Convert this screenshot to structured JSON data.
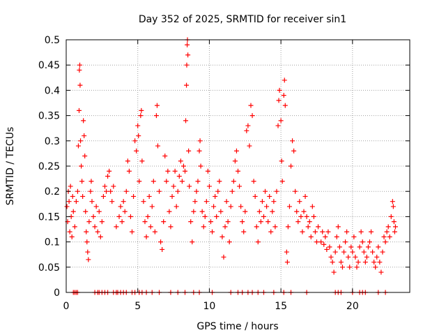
{
  "chart_data": {
    "type": "scatter",
    "title": "Day 352 of 2025, SRMTID for receiver sin1",
    "xlabel": "GPS time / hours",
    "ylabel": "SRMTID / TECUs",
    "xlim": [
      0,
      24
    ],
    "ylim": [
      0,
      0.5
    ],
    "xticks": [
      0,
      5,
      10,
      15,
      20
    ],
    "xtick_labels": [
      "0",
      "5",
      "10",
      "15",
      "20"
    ],
    "yticks": [
      0,
      0.05,
      0.1,
      0.15,
      0.2,
      0.25,
      0.3,
      0.35,
      0.4,
      0.45,
      0.5
    ],
    "ytick_labels": [
      "0",
      "0.05",
      "0.1",
      "0.15",
      "0.2",
      "0.25",
      "0.3",
      "0.35",
      "0.4",
      "0.45",
      "0.5"
    ],
    "grid": true,
    "marker": "+",
    "color": "#ff0000",
    "series": [
      {
        "name": "SRMTID",
        "points": [
          [
            0.05,
            0.17
          ],
          [
            0.1,
            0.14
          ],
          [
            0.15,
            0.2
          ],
          [
            0.2,
            0.18
          ],
          [
            0.25,
            0.12
          ],
          [
            0.3,
            0.21
          ],
          [
            0.35,
            0.15
          ],
          [
            0.4,
            0.11
          ],
          [
            0.45,
            0.19
          ],
          [
            0.5,
            0.16
          ],
          [
            0.6,
            0.13
          ],
          [
            0.7,
            0.18
          ],
          [
            0.8,
            0.2
          ],
          [
            0.85,
            0.29
          ],
          [
            0.9,
            0.36
          ],
          [
            0.92,
            0.44
          ],
          [
            0.95,
            0.45
          ],
          [
            0.97,
            0.41
          ],
          [
            1.0,
            0.3
          ],
          [
            1.05,
            0.25
          ],
          [
            1.1,
            0.22
          ],
          [
            1.15,
            0.19
          ],
          [
            1.2,
            0.34
          ],
          [
            1.25,
            0.31
          ],
          [
            1.3,
            0.27
          ],
          [
            1.35,
            0.16
          ],
          [
            1.4,
            0.12
          ],
          [
            1.45,
            0.1
          ],
          [
            1.5,
            0.08
          ],
          [
            1.55,
            0.065
          ],
          [
            1.6,
            0.14
          ],
          [
            1.7,
            0.2
          ],
          [
            1.75,
            0.22
          ],
          [
            1.8,
            0.18
          ],
          [
            1.9,
            0.15
          ],
          [
            2.0,
            0.13
          ],
          [
            2.1,
            0.17
          ],
          [
            2.2,
            0.12
          ],
          [
            2.3,
            0.16
          ],
          [
            2.4,
            0.11
          ],
          [
            2.5,
            0.14
          ],
          [
            2.6,
            0.19
          ],
          [
            2.7,
            0.21
          ],
          [
            2.8,
            0.2
          ],
          [
            2.9,
            0.23
          ],
          [
            3.0,
            0.24
          ],
          [
            3.1,
            0.2
          ],
          [
            3.2,
            0.18
          ],
          [
            3.3,
            0.21
          ],
          [
            3.5,
            0.13
          ],
          [
            3.7,
            0.15
          ],
          [
            3.8,
            0.17
          ],
          [
            3.9,
            0.14
          ],
          [
            4.0,
            0.18
          ],
          [
            4.1,
            0.16
          ],
          [
            4.2,
            0.2
          ],
          [
            4.3,
            0.26
          ],
          [
            4.4,
            0.24
          ],
          [
            4.5,
            0.15
          ],
          [
            4.6,
            0.12
          ],
          [
            4.7,
            0.19
          ],
          [
            4.8,
            0.3
          ],
          [
            4.9,
            0.28
          ],
          [
            5.0,
            0.33
          ],
          [
            5.05,
            0.31
          ],
          [
            5.1,
            0.22
          ],
          [
            5.2,
            0.35
          ],
          [
            5.25,
            0.36
          ],
          [
            5.3,
            0.26
          ],
          [
            5.4,
            0.18
          ],
          [
            5.5,
            0.14
          ],
          [
            5.6,
            0.11
          ],
          [
            5.7,
            0.15
          ],
          [
            5.8,
            0.19
          ],
          [
            5.9,
            0.13
          ],
          [
            6.0,
            0.17
          ],
          [
            6.1,
            0.22
          ],
          [
            6.2,
            0.12
          ],
          [
            6.3,
            0.35
          ],
          [
            6.35,
            0.37
          ],
          [
            6.4,
            0.29
          ],
          [
            6.5,
            0.2
          ],
          [
            6.6,
            0.1
          ],
          [
            6.7,
            0.085
          ],
          [
            6.8,
            0.14
          ],
          [
            6.9,
            0.27
          ],
          [
            7.0,
            0.22
          ],
          [
            7.1,
            0.24
          ],
          [
            7.2,
            0.16
          ],
          [
            7.3,
            0.13
          ],
          [
            7.4,
            0.19
          ],
          [
            7.5,
            0.21
          ],
          [
            7.6,
            0.24
          ],
          [
            7.7,
            0.17
          ],
          [
            7.8,
            0.2
          ],
          [
            7.9,
            0.23
          ],
          [
            8.0,
            0.26
          ],
          [
            8.1,
            0.22
          ],
          [
            8.2,
            0.25
          ],
          [
            8.3,
            0.24
          ],
          [
            8.35,
            0.34
          ],
          [
            8.4,
            0.41
          ],
          [
            8.42,
            0.45
          ],
          [
            8.45,
            0.49
          ],
          [
            8.47,
            0.5
          ],
          [
            8.5,
            0.47
          ],
          [
            8.55,
            0.28
          ],
          [
            8.6,
            0.21
          ],
          [
            8.7,
            0.14
          ],
          [
            8.8,
            0.1
          ],
          [
            8.9,
            0.16
          ],
          [
            9.0,
            0.18
          ],
          [
            9.1,
            0.2
          ],
          [
            9.2,
            0.22
          ],
          [
            9.3,
            0.28
          ],
          [
            9.35,
            0.3
          ],
          [
            9.4,
            0.25
          ],
          [
            9.5,
            0.16
          ],
          [
            9.6,
            0.13
          ],
          [
            9.7,
            0.15
          ],
          [
            9.8,
            0.18
          ],
          [
            9.9,
            0.24
          ],
          [
            10.0,
            0.21
          ],
          [
            10.1,
            0.14
          ],
          [
            10.2,
            0.12
          ],
          [
            10.3,
            0.17
          ],
          [
            10.4,
            0.19
          ],
          [
            10.5,
            0.15
          ],
          [
            10.6,
            0.2
          ],
          [
            10.7,
            0.22
          ],
          [
            10.8,
            0.16
          ],
          [
            10.9,
            0.11
          ],
          [
            11.0,
            0.07
          ],
          [
            11.1,
            0.13
          ],
          [
            11.2,
            0.18
          ],
          [
            11.3,
            0.14
          ],
          [
            11.4,
            0.1
          ],
          [
            11.5,
            0.17
          ],
          [
            11.6,
            0.2
          ],
          [
            11.7,
            0.22
          ],
          [
            11.8,
            0.26
          ],
          [
            11.9,
            0.28
          ],
          [
            12.0,
            0.24
          ],
          [
            12.1,
            0.21
          ],
          [
            12.2,
            0.17
          ],
          [
            12.3,
            0.14
          ],
          [
            12.4,
            0.12
          ],
          [
            12.5,
            0.16
          ],
          [
            12.6,
            0.32
          ],
          [
            12.7,
            0.33
          ],
          [
            12.8,
            0.29
          ],
          [
            12.9,
            0.37
          ],
          [
            13.0,
            0.35
          ],
          [
            13.1,
            0.22
          ],
          [
            13.2,
            0.19
          ],
          [
            13.3,
            0.13
          ],
          [
            13.4,
            0.1
          ],
          [
            13.5,
            0.16
          ],
          [
            13.6,
            0.14
          ],
          [
            13.7,
            0.18
          ],
          [
            13.8,
            0.15
          ],
          [
            13.9,
            0.2
          ],
          [
            14.0,
            0.17
          ],
          [
            14.1,
            0.14
          ],
          [
            14.2,
            0.19
          ],
          [
            14.3,
            0.12
          ],
          [
            14.4,
            0.16
          ],
          [
            14.5,
            0.18
          ],
          [
            14.6,
            0.13
          ],
          [
            14.7,
            0.2
          ],
          [
            14.8,
            0.33
          ],
          [
            14.85,
            0.38
          ],
          [
            14.9,
            0.4
          ],
          [
            15.0,
            0.34
          ],
          [
            15.05,
            0.26
          ],
          [
            15.1,
            0.22
          ],
          [
            15.2,
            0.39
          ],
          [
            15.25,
            0.42
          ],
          [
            15.3,
            0.37
          ],
          [
            15.4,
            0.08
          ],
          [
            15.45,
            0.06
          ],
          [
            15.5,
            0.13
          ],
          [
            15.6,
            0.17
          ],
          [
            15.7,
            0.25
          ],
          [
            15.8,
            0.3
          ],
          [
            15.9,
            0.28
          ],
          [
            16.0,
            0.2
          ],
          [
            16.1,
            0.16
          ],
          [
            16.2,
            0.14
          ],
          [
            16.3,
            0.18
          ],
          [
            16.4,
            0.15
          ],
          [
            16.5,
            0.12
          ],
          [
            16.6,
            0.16
          ],
          [
            16.7,
            0.19
          ],
          [
            16.8,
            0.15
          ],
          [
            16.9,
            0.13
          ],
          [
            17.0,
            0.14
          ],
          [
            17.1,
            0.11
          ],
          [
            17.2,
            0.17
          ],
          [
            17.3,
            0.15
          ],
          [
            17.4,
            0.12
          ],
          [
            17.5,
            0.1
          ],
          [
            17.6,
            0.13
          ],
          [
            17.8,
            0.1
          ],
          [
            17.9,
            0.12
          ],
          [
            18.0,
            0.095
          ],
          [
            18.1,
            0.11
          ],
          [
            18.2,
            0.085
          ],
          [
            18.3,
            0.12
          ],
          [
            18.4,
            0.09
          ],
          [
            18.5,
            0.07
          ],
          [
            18.6,
            0.06
          ],
          [
            18.7,
            0.04
          ],
          [
            18.8,
            0.08
          ],
          [
            18.9,
            0.11
          ],
          [
            19.0,
            0.13
          ],
          [
            19.1,
            0.09
          ],
          [
            19.2,
            0.06
          ],
          [
            19.3,
            0.05
          ],
          [
            19.4,
            0.08
          ],
          [
            19.5,
            0.1
          ],
          [
            19.6,
            0.12
          ],
          [
            19.7,
            0.07
          ],
          [
            19.8,
            0.05
          ],
          [
            19.9,
            0.09
          ],
          [
            20.0,
            0.08
          ],
          [
            20.1,
            0.11
          ],
          [
            20.2,
            0.07
          ],
          [
            20.3,
            0.05
          ],
          [
            20.4,
            0.06
          ],
          [
            20.5,
            0.09
          ],
          [
            20.6,
            0.12
          ],
          [
            20.7,
            0.1
          ],
          [
            20.8,
            0.08
          ],
          [
            20.9,
            0.06
          ],
          [
            21.0,
            0.07
          ],
          [
            21.1,
            0.09
          ],
          [
            21.2,
            0.1
          ],
          [
            21.3,
            0.12
          ],
          [
            21.4,
            0.08
          ],
          [
            21.5,
            0.06
          ],
          [
            21.6,
            0.05
          ],
          [
            21.7,
            0.07
          ],
          [
            21.8,
            0.09
          ],
          [
            21.9,
            0.06
          ],
          [
            22.0,
            0.04
          ],
          [
            22.1,
            0.08
          ],
          [
            22.2,
            0.11
          ],
          [
            22.3,
            0.1
          ],
          [
            22.4,
            0.12
          ],
          [
            22.5,
            0.13
          ],
          [
            22.6,
            0.11
          ],
          [
            22.7,
            0.15
          ],
          [
            22.8,
            0.18
          ],
          [
            22.85,
            0.17
          ],
          [
            22.9,
            0.14
          ],
          [
            22.95,
            0.12
          ],
          [
            23.0,
            0.13
          ],
          [
            0.5,
            0.0
          ],
          [
            0.6,
            0.0
          ],
          [
            0.7,
            0.0
          ],
          [
            0.8,
            0.0
          ],
          [
            2.0,
            0.0
          ],
          [
            2.2,
            0.0
          ],
          [
            2.3,
            0.0
          ],
          [
            2.5,
            0.0
          ],
          [
            2.7,
            0.0
          ],
          [
            2.9,
            0.0
          ],
          [
            3.3,
            0.0
          ],
          [
            3.5,
            0.0
          ],
          [
            3.6,
            0.0
          ],
          [
            3.8,
            0.0
          ],
          [
            4.0,
            0.0
          ],
          [
            4.2,
            0.0
          ],
          [
            4.6,
            0.0
          ],
          [
            4.8,
            0.0
          ],
          [
            5.1,
            0.0
          ],
          [
            5.3,
            0.0
          ],
          [
            5.6,
            0.0
          ],
          [
            6.0,
            0.0
          ],
          [
            6.5,
            0.0
          ],
          [
            7.3,
            0.0
          ],
          [
            7.8,
            0.0
          ],
          [
            8.3,
            0.0
          ],
          [
            8.9,
            0.0
          ],
          [
            9.3,
            0.0
          ],
          [
            10.2,
            0.0
          ],
          [
            11.5,
            0.0
          ],
          [
            12.0,
            0.0
          ],
          [
            12.3,
            0.0
          ],
          [
            12.7,
            0.0
          ],
          [
            13.0,
            0.0
          ],
          [
            13.4,
            0.0
          ],
          [
            13.8,
            0.0
          ],
          [
            14.5,
            0.0
          ],
          [
            15.2,
            0.0
          ],
          [
            15.7,
            0.0
          ],
          [
            16.8,
            0.0
          ],
          [
            18.8,
            0.0
          ],
          [
            19.0,
            0.0
          ],
          [
            19.2,
            0.0
          ],
          [
            20.0,
            0.0
          ],
          [
            20.5,
            0.0
          ],
          [
            20.7,
            0.0
          ],
          [
            20.9,
            0.0
          ],
          [
            21.8,
            0.0
          ],
          [
            22.3,
            0.0
          ]
        ]
      }
    ]
  }
}
